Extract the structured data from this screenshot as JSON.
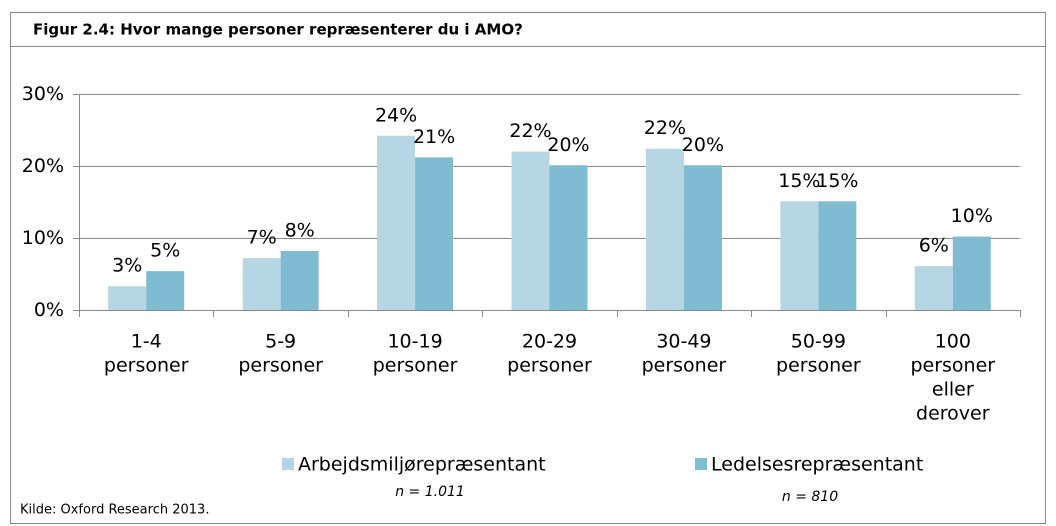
{
  "chart_data": {
    "type": "bar",
    "title": "Figur 2.4: Hvor mange personer repræsenterer du i AMO?",
    "categories": [
      [
        "1-4",
        "personer"
      ],
      [
        "5-9",
        "personer"
      ],
      [
        "10-19",
        "personer"
      ],
      [
        "20-29",
        "personer"
      ],
      [
        "30-49",
        "personer"
      ],
      [
        "50-99",
        "personer"
      ],
      [
        "100",
        "personer",
        "eller",
        "derover"
      ]
    ],
    "series": [
      {
        "name": "Arbejdsmiljørepræsentant",
        "color": "#b7d6e3",
        "n_label": "n = 1.011",
        "values": [
          3.3,
          7.2,
          24.2,
          22.0,
          22.4,
          15.1,
          6.1
        ],
        "value_labels": [
          "3%",
          "7%",
          "24%",
          "22%",
          "22%",
          "15%",
          "6%"
        ]
      },
      {
        "name": "Ledelsesrepræsentant",
        "color": "#7fbcd2",
        "n_label": "n = 810",
        "values": [
          5.4,
          8.2,
          21.2,
          20.1,
          20.1,
          15.1,
          10.2
        ],
        "value_labels": [
          "5%",
          "8%",
          "21%",
          "20%",
          "20%",
          "15%",
          "10%"
        ]
      }
    ],
    "ylim": [
      0,
      30
    ],
    "yticks": [
      {
        "value": 0,
        "label": "0%"
      },
      {
        "value": 10,
        "label": "10%"
      },
      {
        "value": 20,
        "label": "20%"
      },
      {
        "value": 30,
        "label": "30%"
      }
    ],
    "grid": true,
    "source": "Kilde: Oxford Research 2013."
  }
}
